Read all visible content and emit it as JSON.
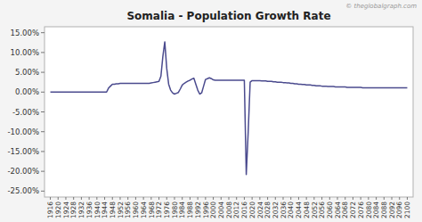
{
  "chart_data": {
    "type": "line",
    "title": "Somalia - Population Growth Rate",
    "annotations": [
      "© theglobalgraph.com"
    ],
    "color": "#4b4b8e",
    "grid": false,
    "xlim": [
      1913,
      2103
    ],
    "xticks": [
      1916,
      1920,
      1924,
      1928,
      1932,
      1936,
      1940,
      1944,
      1948,
      1952,
      1956,
      1960,
      1964,
      1968,
      1972,
      1976,
      1980,
      1984,
      1988,
      1992,
      1996,
      2000,
      2004,
      2008,
      2012,
      2016,
      2020,
      2024,
      2028,
      2032,
      2036,
      2040,
      2044,
      2048,
      2052,
      2056,
      2060,
      2064,
      2068,
      2072,
      2076,
      2080,
      2084,
      2088,
      2092,
      2096,
      2100
    ],
    "ylim": [
      -0.265,
      0.165
    ],
    "yticks": [
      {
        "value": -0.25,
        "label": "-25.00%"
      },
      {
        "value": -0.2,
        "label": "-20.00%"
      },
      {
        "value": -0.15,
        "label": "-15.00%"
      },
      {
        "value": -0.1,
        "label": "-10.00%"
      },
      {
        "value": -0.05,
        "label": "-5.00%"
      },
      {
        "value": 0.0,
        "label": "0.00%"
      },
      {
        "value": 0.05,
        "label": "5.00%"
      },
      {
        "value": 0.1,
        "label": "10.00%"
      },
      {
        "value": 0.15,
        "label": "15.00%"
      }
    ],
    "x": [
      1916,
      1917,
      1918,
      1919,
      1920,
      1921,
      1922,
      1923,
      1924,
      1925,
      1926,
      1927,
      1928,
      1929,
      1930,
      1931,
      1932,
      1933,
      1934,
      1935,
      1936,
      1937,
      1938,
      1939,
      1940,
      1941,
      1942,
      1943,
      1944,
      1945,
      1946,
      1947,
      1948,
      1949,
      1950,
      1951,
      1952,
      1953,
      1954,
      1955,
      1956,
      1957,
      1958,
      1959,
      1960,
      1961,
      1962,
      1963,
      1964,
      1965,
      1966,
      1967,
      1968,
      1969,
      1970,
      1971,
      1972,
      1973,
      1974,
      1975,
      1976,
      1977,
      1978,
      1979,
      1980,
      1981,
      1982,
      1983,
      1984,
      1985,
      1986,
      1987,
      1988,
      1989,
      1990,
      1991,
      1992,
      1993,
      1994,
      1995,
      1996,
      1997,
      1998,
      1999,
      2000,
      2001,
      2002,
      2003,
      2004,
      2005,
      2006,
      2007,
      2008,
      2009,
      2010,
      2011,
      2012,
      2013,
      2014,
      2015,
      2016,
      2017,
      2018,
      2019,
      2020,
      2021,
      2022,
      2023,
      2024,
      2025,
      2026,
      2027,
      2028,
      2029,
      2030,
      2031,
      2032,
      2033,
      2034,
      2035,
      2036,
      2037,
      2038,
      2039,
      2040,
      2041,
      2042,
      2043,
      2044,
      2045,
      2046,
      2047,
      2048,
      2049,
      2050,
      2051,
      2052,
      2053,
      2054,
      2055,
      2056,
      2057,
      2058,
      2059,
      2060,
      2061,
      2062,
      2063,
      2064,
      2065,
      2066,
      2067,
      2068,
      2069,
      2070,
      2071,
      2072,
      2073,
      2074,
      2075,
      2076,
      2077,
      2078,
      2079,
      2080,
      2081,
      2082,
      2083,
      2084,
      2085,
      2086,
      2087,
      2088,
      2089,
      2090,
      2091,
      2092,
      2093,
      2094,
      2095,
      2096,
      2097,
      2098,
      2099,
      2100
    ],
    "values": [
      0.0,
      0.0,
      0.0,
      0.0,
      0.0,
      0.0,
      0.0,
      0.0,
      0.0,
      0.0,
      0.0,
      0.0,
      0.0,
      0.0,
      0.0,
      0.0,
      0.0,
      0.0,
      0.0,
      0.0,
      0.0,
      0.0,
      0.0,
      0.0,
      0.0,
      0.0,
      0.0,
      0.0,
      0.0,
      0.0,
      0.01,
      0.015,
      0.02,
      0.02,
      0.021,
      0.021,
      0.022,
      0.022,
      0.022,
      0.022,
      0.022,
      0.022,
      0.022,
      0.022,
      0.022,
      0.022,
      0.022,
      0.022,
      0.022,
      0.022,
      0.022,
      0.022,
      0.023,
      0.024,
      0.025,
      0.026,
      0.027,
      0.04,
      0.09,
      0.127,
      0.06,
      0.02,
      0.005,
      -0.002,
      -0.005,
      -0.003,
      -0.001,
      0.008,
      0.018,
      0.022,
      0.025,
      0.028,
      0.03,
      0.033,
      0.035,
      0.02,
      0.005,
      -0.005,
      -0.002,
      0.015,
      0.032,
      0.034,
      0.036,
      0.034,
      0.031,
      0.03,
      0.03,
      0.03,
      0.03,
      0.03,
      0.03,
      0.03,
      0.03,
      0.03,
      0.03,
      0.03,
      0.03,
      0.03,
      0.03,
      0.03,
      0.03,
      -0.208,
      -0.1,
      0.025,
      0.029,
      0.029,
      0.029,
      0.029,
      0.029,
      0.028,
      0.028,
      0.028,
      0.027,
      0.027,
      0.027,
      0.026,
      0.026,
      0.025,
      0.025,
      0.025,
      0.024,
      0.024,
      0.023,
      0.023,
      0.022,
      0.022,
      0.021,
      0.021,
      0.02,
      0.02,
      0.019,
      0.019,
      0.018,
      0.018,
      0.018,
      0.017,
      0.017,
      0.016,
      0.016,
      0.016,
      0.015,
      0.015,
      0.015,
      0.014,
      0.014,
      0.014,
      0.014,
      0.013,
      0.013,
      0.013,
      0.013,
      0.013,
      0.013,
      0.012,
      0.012,
      0.012,
      0.012,
      0.012,
      0.012,
      0.012,
      0.012,
      0.011,
      0.011,
      0.011,
      0.011,
      0.011,
      0.011,
      0.011,
      0.011,
      0.011,
      0.011,
      0.011,
      0.011,
      0.011,
      0.011,
      0.011,
      0.011,
      0.011,
      0.011,
      0.011,
      0.011,
      0.011,
      0.011,
      0.011,
      0.011
    ]
  }
}
